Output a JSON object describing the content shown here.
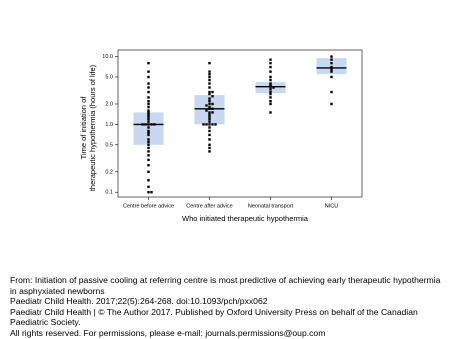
{
  "chart_data": {
    "type": "box",
    "y_label_lines": [
      "Time of initiation of",
      "therapeutic hypothermia (hours of life)"
    ],
    "x_label": "Who initiated therapeutic hypothermia",
    "categories": [
      "Centre before advice",
      "Centre after advice",
      "Neonatal transport",
      "NICU"
    ],
    "q1": [
      0.5,
      1.0,
      2.9,
      5.5
    ],
    "median": [
      1.0,
      1.7,
      3.6,
      6.8
    ],
    "q3": [
      1.5,
      2.7,
      4.2,
      9.5
    ],
    "points": [
      [
        8,
        6,
        5,
        4,
        3.5,
        3,
        2.5,
        2.2,
        2,
        1.8,
        1.6,
        1.5,
        1.4,
        1.3,
        1.2,
        1.1,
        1.0,
        1.0,
        1.0,
        1.0,
        1.0,
        0.9,
        0.8,
        0.75,
        0.7,
        0.6,
        0.55,
        0.5,
        0.45,
        0.4,
        0.35,
        0.3,
        0.25,
        0.2,
        0.15,
        0.12,
        0.1,
        0.1
      ],
      [
        8,
        6,
        5.5,
        5,
        4.5,
        4,
        3.5,
        3,
        3,
        2.8,
        2.6,
        2.4,
        2.2,
        2,
        2,
        1.9,
        1.8,
        1.7,
        1.7,
        1.6,
        1.5,
        1.5,
        1.4,
        1.3,
        1.2,
        1.1,
        1,
        1,
        1,
        1,
        1,
        0.9,
        0.8,
        0.7,
        0.6,
        0.5,
        0.45,
        0.4
      ],
      [
        9,
        8,
        7,
        6,
        5,
        4.5,
        4,
        3.8,
        3.6,
        3.5,
        3.3,
        3,
        2.8,
        2.5,
        2.2,
        2,
        1.5
      ],
      [
        10,
        9,
        8,
        7,
        6.5,
        6,
        5,
        3,
        2
      ]
    ],
    "box_color": "#c6d9f1",
    "point_color": "#000000",
    "log_y": true,
    "ylim": [
      0.085,
      12.5
    ],
    "yticks": [
      0.1,
      0.2,
      0.5,
      {
        "value": 1,
        "label": "1.0"
      },
      {
        "value": 2,
        "label": "2.0"
      },
      {
        "value": 5,
        "label": "5.0"
      },
      {
        "value": 10,
        "label": "10.0"
      }
    ]
  },
  "caption": {
    "from": "From: Initiation of passive cooling at referring centre is most predictive of achieving early therapeutic hypothermia in asphyxiated newborns",
    "citation": "Paediatr Child Health. 2017;22(5):264-268. doi:10.1093/pch/pxx062",
    "copyright": "Paediatr Child Health | © The Author 2017. Published by Oxford University Press on behalf of the Canadian Paediatric Society.",
    "rights": "All rights reserved. For permissions, please e-mail: journals.permissions@oup.com"
  }
}
